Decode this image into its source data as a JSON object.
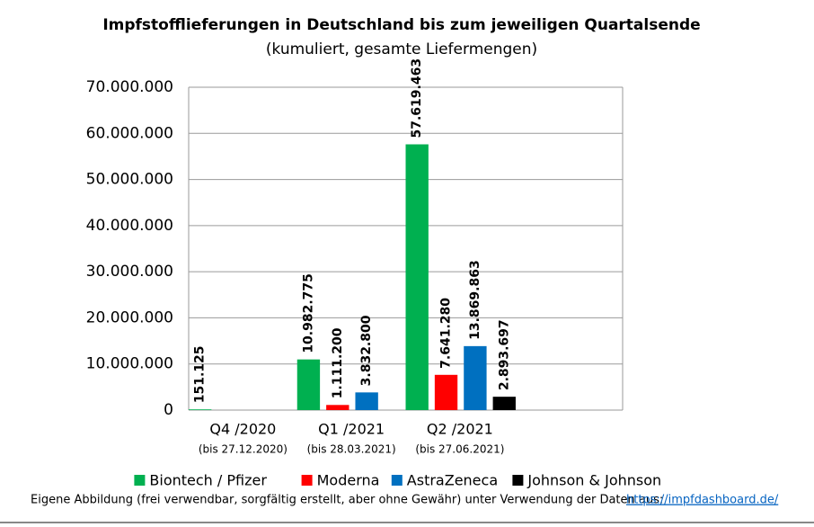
{
  "chart_data": {
    "type": "bar",
    "title": "Impfstofflieferungen in Deutschland bis zum jeweiligen Quartalsende",
    "subtitle": "(kumuliert, gesamte Liefermengen)",
    "categories": [
      "Q4 /2020",
      "Q1 /2021",
      "Q2 /2021",
      null
    ],
    "category_notes": [
      "(bis 27.12.2020)",
      "(bis 28.03.2021)",
      "(bis 27.06.2021)",
      null
    ],
    "series": [
      {
        "name": "Biontech / Pfizer",
        "color": "#00b050",
        "values": [
          151125,
          10982775,
          57619463,
          null
        ],
        "value_labels": [
          "151.125",
          "10.982.775",
          "57.619.463",
          null
        ]
      },
      {
        "name": "Moderna",
        "color": "#ff0000",
        "values": [
          null,
          1111200,
          7641280,
          null
        ],
        "value_labels": [
          null,
          "1.111.200",
          "7.641.280",
          null
        ]
      },
      {
        "name": "AstraZeneca",
        "color": "#0070c0",
        "values": [
          null,
          3832800,
          13869863,
          null
        ],
        "value_labels": [
          null,
          "3.832.800",
          "13.869.863",
          null
        ]
      },
      {
        "name": "Johnson & Johnson",
        "color": "#000000",
        "values": [
          null,
          null,
          2893697,
          null
        ],
        "value_labels": [
          null,
          null,
          "2.893.697",
          null
        ]
      }
    ],
    "ylim": [
      0,
      70000000
    ],
    "yticks": [
      0,
      {
        "value": 10000000,
        "label": "10.000.000"
      },
      {
        "value": 20000000,
        "label": "20.000.000"
      },
      {
        "value": 30000000,
        "label": "30.000.000"
      },
      {
        "value": 40000000,
        "label": "40.000.000"
      },
      {
        "value": 50000000,
        "label": "50.000.000"
      },
      {
        "value": 60000000,
        "label": "60.000.000"
      },
      {
        "value": 70000000,
        "label": "70.000.000"
      }
    ],
    "grid": true,
    "footer": {
      "text": "Eigene Abbildung (frei verwendbar, sorgfältig erstellt, aber ohne Gewähr) unter Verwendung der Daten aus:",
      "link": "https://impfdashboard.de/"
    }
  }
}
